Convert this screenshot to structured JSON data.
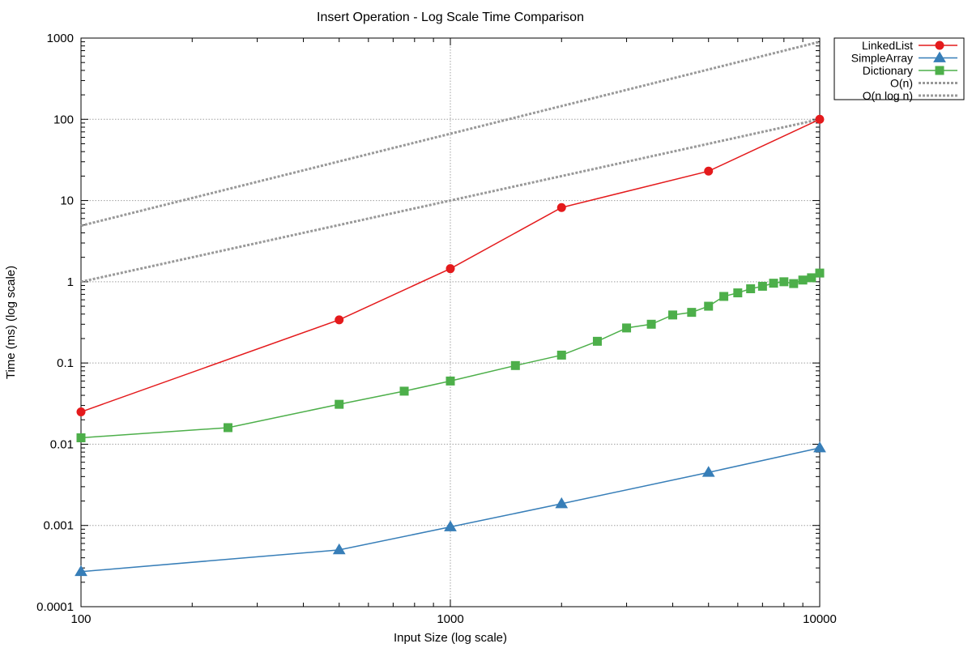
{
  "chart_data": {
    "type": "line",
    "title": "Insert Operation - Log Scale Time Comparison",
    "xlabel": "Input Size (log scale)",
    "ylabel": "Time (ms) (log scale)",
    "x_scale": "log",
    "y_scale": "log",
    "xlim": [
      100,
      10000
    ],
    "ylim": [
      0.0001,
      1000
    ],
    "x_ticks": [
      {
        "value": 100,
        "label": "100"
      },
      {
        "value": 1000,
        "label": "1000"
      },
      {
        "value": 10000,
        "label": "10000"
      }
    ],
    "y_ticks": [
      {
        "value": 0.0001,
        "label": "0.0001"
      },
      {
        "value": 0.001,
        "label": "0.001"
      },
      {
        "value": 0.01,
        "label": "0.01"
      },
      {
        "value": 0.1,
        "label": "0.1"
      },
      {
        "value": 1,
        "label": "1"
      },
      {
        "value": 10,
        "label": "10"
      },
      {
        "value": 100,
        "label": "100"
      },
      {
        "value": 1000,
        "label": "1000"
      }
    ],
    "grid": true,
    "legend_position": "outside-top-right",
    "series": [
      {
        "name": "LinkedList",
        "color": "#e41a1c",
        "marker": "circle",
        "x": [
          100,
          500,
          1000,
          2000,
          5000,
          10000
        ],
        "y": [
          0.025,
          0.34,
          1.45,
          8.2,
          23,
          100
        ]
      },
      {
        "name": "SimpleArray",
        "color": "#377eb8",
        "marker": "triangle",
        "x": [
          100,
          500,
          1000,
          2000,
          5000,
          10000
        ],
        "y": [
          0.00027,
          0.0005,
          0.00096,
          0.00185,
          0.0045,
          0.009
        ]
      },
      {
        "name": "Dictionary",
        "color": "#4daf4a",
        "marker": "square",
        "x": [
          100,
          250,
          500,
          750,
          1000,
          1500,
          2000,
          2500,
          3000,
          3500,
          4000,
          4500,
          5000,
          5500,
          6000,
          6500,
          7000,
          7500,
          8000,
          8500,
          9000,
          9500,
          10000
        ],
        "y": [
          0.012,
          0.016,
          0.031,
          0.045,
          0.06,
          0.093,
          0.125,
          0.185,
          0.27,
          0.3,
          0.39,
          0.42,
          0.5,
          0.66,
          0.73,
          0.82,
          0.88,
          0.96,
          1.0,
          0.95,
          1.05,
          1.12,
          1.28
        ]
      },
      {
        "name": "O(n)",
        "color": "#999999",
        "style": "dotted",
        "x": [
          100,
          10000
        ],
        "y": [
          1,
          100
        ]
      },
      {
        "name": "O(n log n)",
        "color": "#999999",
        "style": "dotted",
        "x": [
          100,
          10000
        ],
        "y": [
          4.9,
          900
        ]
      }
    ]
  }
}
